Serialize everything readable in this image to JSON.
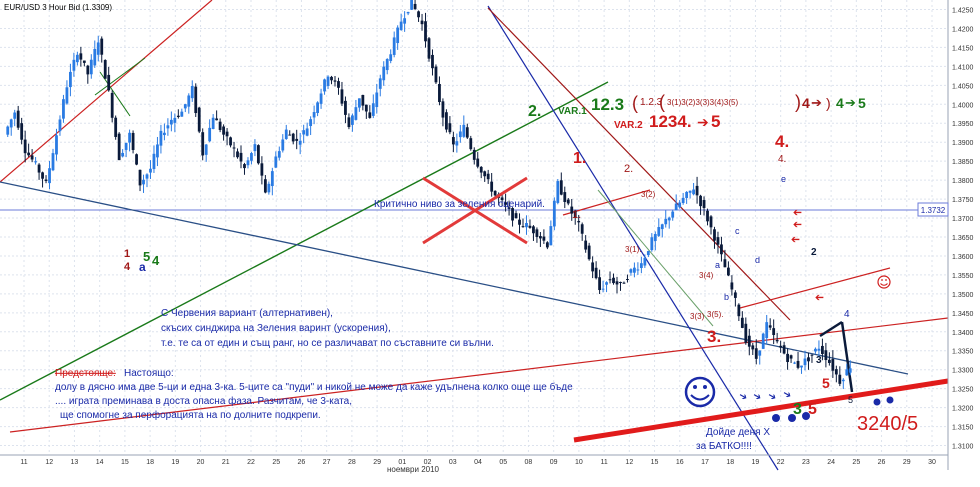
{
  "window": {
    "title": "EUR/USD 3 Hour Bid (1.3309)"
  },
  "chart_data": {
    "type": "candlestick",
    "instrument": "EUR/USD",
    "timeframe": "3 Hour",
    "price_side": "Bid",
    "last_price": 1.3309,
    "ylim": [
      1.3075,
      1.4275
    ],
    "y_ticks": [
      "1.4250",
      "1.4200",
      "1.4150",
      "1.4100",
      "1.4050",
      "1.4000",
      "1.3950",
      "1.3900",
      "1.3850",
      "1.3800",
      "1.3750",
      "1.3700",
      "1.3650",
      "1.3600",
      "1.3550",
      "1.3500",
      "1.3450",
      "1.3400",
      "1.3350",
      "1.3300",
      "1.3250",
      "1.3200",
      "1.3150",
      "1.3100"
    ],
    "x_ticks": [
      "11",
      "12",
      "13",
      "14",
      "15",
      "18",
      "19",
      "20",
      "21",
      "22",
      "25",
      "26",
      "27",
      "28",
      "29",
      "01",
      "02",
      "03",
      "04",
      "05",
      "08",
      "09",
      "10",
      "11",
      "12",
      "15",
      "16",
      "17",
      "18",
      "19",
      "22",
      "23",
      "24",
      "25",
      "26",
      "29",
      "30"
    ],
    "x_axis_month_label": "ноември 2010",
    "marked_level": {
      "value": 1.3732,
      "label": "1.3732"
    },
    "price_path": [
      [
        0,
        1.392
      ],
      [
        1,
        1.398
      ],
      [
        2,
        1.388
      ],
      [
        3,
        1.384
      ],
      [
        4,
        1.379
      ],
      [
        5,
        1.392
      ],
      [
        6,
        1.405
      ],
      [
        7,
        1.414
      ],
      [
        8,
        1.408
      ],
      [
        9,
        1.417
      ],
      [
        10,
        1.403
      ],
      [
        11,
        1.386
      ],
      [
        12,
        1.392
      ],
      [
        13,
        1.379
      ],
      [
        14,
        1.383
      ],
      [
        15,
        1.392
      ],
      [
        16,
        1.396
      ],
      [
        17,
        1.398
      ],
      [
        18,
        1.404
      ],
      [
        19,
        1.387
      ],
      [
        20,
        1.397
      ],
      [
        21,
        1.392
      ],
      [
        22,
        1.388
      ],
      [
        23,
        1.383
      ],
      [
        24,
        1.389
      ],
      [
        25,
        1.376
      ],
      [
        26,
        1.386
      ],
      [
        27,
        1.393
      ],
      [
        28,
        1.39
      ],
      [
        29,
        1.394
      ],
      [
        30,
        1.401
      ],
      [
        31,
        1.408
      ],
      [
        32,
        1.404
      ],
      [
        33,
        1.394
      ],
      [
        34,
        1.402
      ],
      [
        35,
        1.396
      ],
      [
        36,
        1.407
      ],
      [
        37,
        1.414
      ],
      [
        38,
        1.422
      ],
      [
        39,
        1.427
      ],
      [
        40,
        1.421
      ],
      [
        41,
        1.409
      ],
      [
        42,
        1.397
      ],
      [
        43,
        1.389
      ],
      [
        44,
        1.394
      ],
      [
        45,
        1.386
      ],
      [
        46,
        1.381
      ],
      [
        47,
        1.376
      ],
      [
        48,
        1.373
      ],
      [
        49,
        1.369
      ],
      [
        50,
        1.368
      ],
      [
        51,
        1.366
      ],
      [
        52,
        1.363
      ],
      [
        53,
        1.379
      ],
      [
        54,
        1.373
      ],
      [
        55,
        1.368
      ],
      [
        56,
        1.359
      ],
      [
        57,
        1.351
      ],
      [
        58,
        1.354
      ],
      [
        59,
        1.352
      ],
      [
        60,
        1.356
      ],
      [
        61,
        1.358
      ],
      [
        62,
        1.364
      ],
      [
        63,
        1.368
      ],
      [
        64,
        1.372
      ],
      [
        65,
        1.375
      ],
      [
        66,
        1.378
      ],
      [
        67,
        1.372
      ],
      [
        68,
        1.365
      ],
      [
        69,
        1.357
      ],
      [
        70,
        1.348
      ],
      [
        71,
        1.338
      ],
      [
        72,
        1.333
      ],
      [
        73,
        1.342
      ],
      [
        74,
        1.337
      ],
      [
        75,
        1.333
      ],
      [
        76,
        1.331
      ],
      [
        77,
        1.333
      ],
      [
        78,
        1.336
      ],
      [
        79,
        1.332
      ],
      [
        80,
        1.327
      ],
      [
        81,
        1.331
      ]
    ],
    "trendlines": [
      {
        "name": "red-channel-upper",
        "color": "#cc2222"
      },
      {
        "name": "red-channel-lower",
        "color": "#cc2222"
      },
      {
        "name": "green-support",
        "color": "#1a7a1a"
      },
      {
        "name": "navy-support",
        "color": "#2a4f86"
      },
      {
        "name": "blue-channel",
        "color": "#1a2aa8"
      },
      {
        "name": "darkred-trend",
        "color": "#a01818"
      },
      {
        "name": "thick-red-floor",
        "color": "#e11b1b"
      }
    ],
    "annotations": {
      "var1_prefix": "VAR.1",
      "var1_big": "12.3",
      "var1_inner": "1.2.3",
      "var1_subwaves": "3(1)3(2)3(3)3(4)3(5)",
      "var1_tail_red": "4",
      "var1_tail_green_4": "4",
      "var1_tail_green_5": "5",
      "var2_prefix": "VAR.2",
      "var2_seq": "1234.",
      "var2_5": "5",
      "critical_level": "Критично ниво за зеления сценарий.",
      "wave_2_green": "2.",
      "wave_1_red": "1.",
      "wave_2_red": "2.",
      "wave_1_small": "1.",
      "wave_3_1": "3(1).",
      "wave_3_2": "3(2)",
      "wave_3_3": "3(3)",
      "wave_3_4": "3(4)",
      "wave_3_5": "3(5).",
      "wave_3_red": "3.",
      "wave_4_red_big": "4.",
      "wave_4_red_small": "4.",
      "wave_a": "a",
      "wave_b": "b",
      "wave_c": "c",
      "wave_d": "d",
      "wave_e": "e",
      "wave_2_black": "2",
      "wave_3_black": "3",
      "wave_4_black": "4",
      "wave_5_black": "5",
      "wave_5_red": "5",
      "wave_5_red_b": "5",
      "wave_3_green": "3",
      "legend_1": "1",
      "legend_4": "4",
      "legend_a": "a",
      "legend_5": "5",
      "legend_4g": "4",
      "target": "3240/5",
      "day_x_line1": "Дойде деня Х",
      "day_x_line2": "за БАТКО!!!!",
      "red_variant_line1": "С Червения вариант (алтернативен),",
      "red_variant_line2": "скъсих синджира на Зеления варинт (ускорения),",
      "red_variant_line3": "т.е.  те са от един и същ ранг, но се различават по съставните си вълни.",
      "outlook_struck": "Предстояще:",
      "outlook_now": "Настоящо:",
      "outlook_line1": "долу в дясно има две 5-ци и една 3-ка. 5-ците са \"пуди\" и никой не може да каже удълнена колко още ще бъде",
      "outlook_line2": ".... играта преминава в доста опасна фаза. Разчитам, че 3-ката,",
      "outlook_line3": "ще спомогне за перфорацията на по долните подкрепи."
    },
    "colors": {
      "background": "#ffffff",
      "grid": "#dde3ee",
      "candle_up": "#2a7be3",
      "candle_down": "#0a1a3a",
      "level_line": "#6b7bd8",
      "accent_red": "#d01c1c",
      "accent_green": "#1a7a1a"
    }
  }
}
